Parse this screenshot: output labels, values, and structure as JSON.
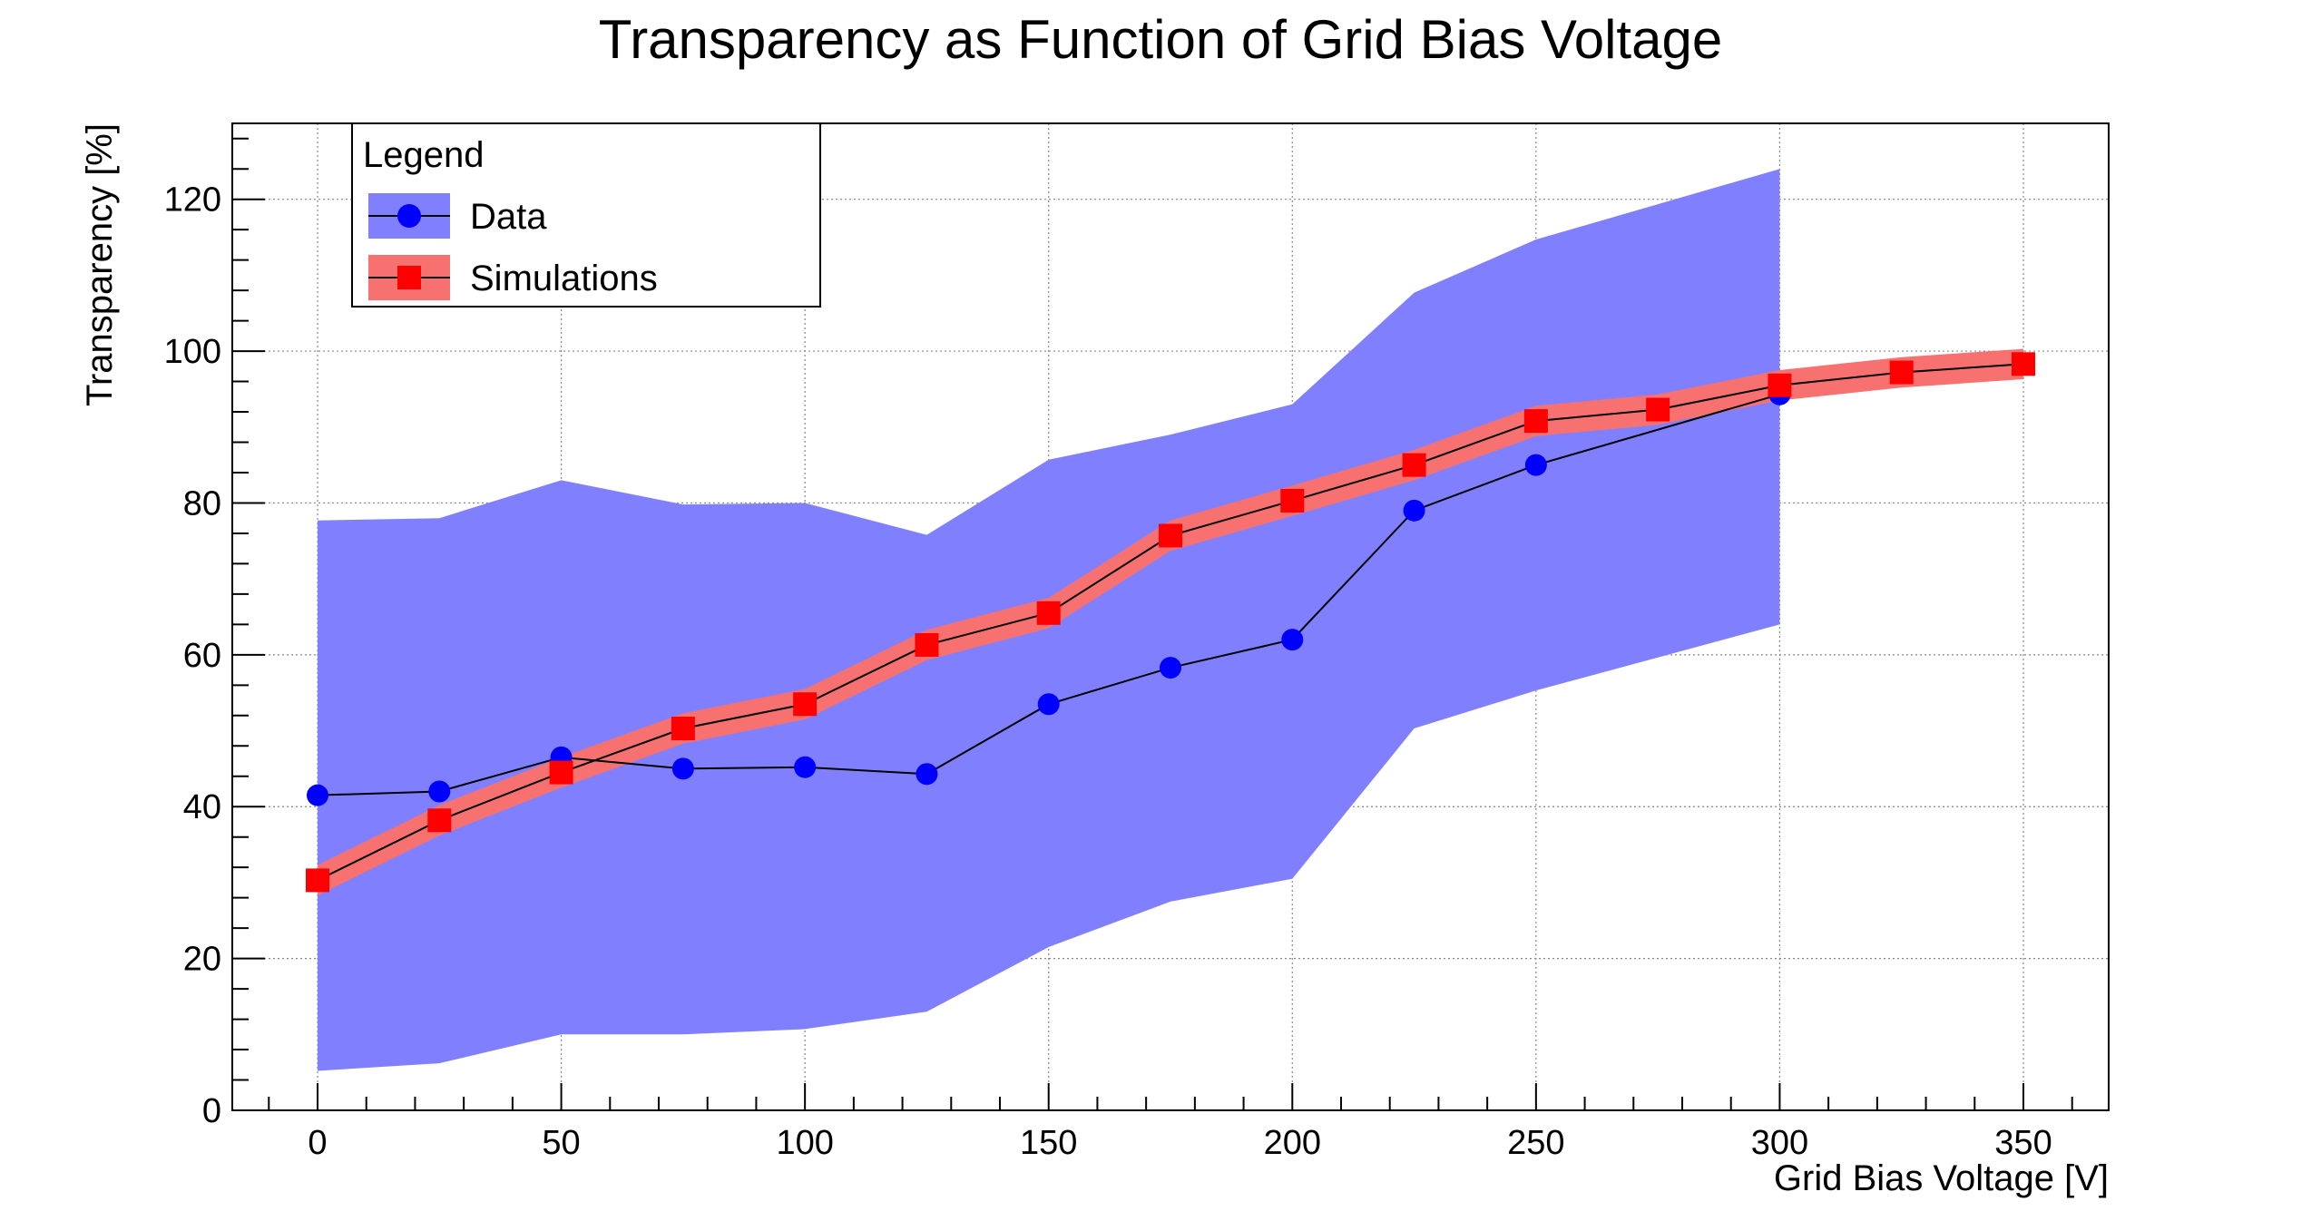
{
  "chart_data": {
    "type": "line",
    "title": "Transparency as Function of Grid Bias Voltage",
    "xlabel": "Grid Bias Voltage [V]",
    "ylabel": "Transparency [%]",
    "xlim": [
      -17.5,
      367.5
    ],
    "ylim": [
      0,
      130
    ],
    "x_ticks": [
      0,
      50,
      100,
      150,
      200,
      250,
      300,
      350
    ],
    "x_tick_labels": [
      "0",
      "50",
      "100",
      "150",
      "200",
      "250",
      "300",
      "350"
    ],
    "y_ticks": [
      0,
      20,
      40,
      60,
      80,
      100,
      120
    ],
    "y_tick_labels": [
      "0",
      "20",
      "40",
      "60",
      "80",
      "100",
      "120"
    ],
    "grid": true,
    "legend": {
      "title": "Legend",
      "placement": "top-left",
      "entries": [
        "Data",
        "Simulations"
      ]
    },
    "series": [
      {
        "name": "Data",
        "marker": "circle",
        "color": "#0000ff",
        "band_color": "#8080ff",
        "x": [
          0,
          25,
          50,
          75,
          100,
          125,
          150,
          175,
          200,
          225,
          250,
          300
        ],
        "values": [
          41.5,
          42.0,
          46.5,
          45.0,
          45.2,
          44.3,
          53.5,
          58.3,
          62.0,
          79.0,
          85.0,
          94.3
        ],
        "band_upper": [
          77.7,
          78.0,
          83.0,
          79.8,
          80.0,
          75.8,
          85.7,
          89.0,
          93.0,
          107.7,
          114.7,
          124.0
        ],
        "band_lower": [
          5.2,
          6.2,
          10.0,
          10.0,
          10.7,
          13.0,
          21.5,
          27.5,
          30.5,
          50.3,
          55.3,
          64.0
        ]
      },
      {
        "name": "Simulations",
        "marker": "square",
        "color": "#ff0000",
        "band_color": "#f87171",
        "x": [
          0,
          25,
          50,
          75,
          100,
          125,
          150,
          175,
          200,
          225,
          250,
          275,
          300,
          325,
          350
        ],
        "values": [
          30.3,
          38.2,
          44.5,
          50.3,
          53.5,
          61.3,
          65.5,
          75.7,
          80.3,
          85.0,
          90.8,
          92.3,
          95.5,
          97.2,
          98.3
        ],
        "band_upper": [
          32.3,
          40.2,
          46.5,
          52.3,
          55.5,
          63.3,
          67.5,
          77.7,
          82.3,
          87.0,
          92.8,
          94.3,
          97.5,
          99.2,
          100.3
        ],
        "band_lower": [
          28.3,
          36.2,
          42.5,
          48.3,
          51.5,
          59.3,
          63.5,
          73.7,
          78.3,
          83.0,
          88.8,
          90.3,
          93.5,
          95.2,
          96.3
        ]
      }
    ]
  }
}
